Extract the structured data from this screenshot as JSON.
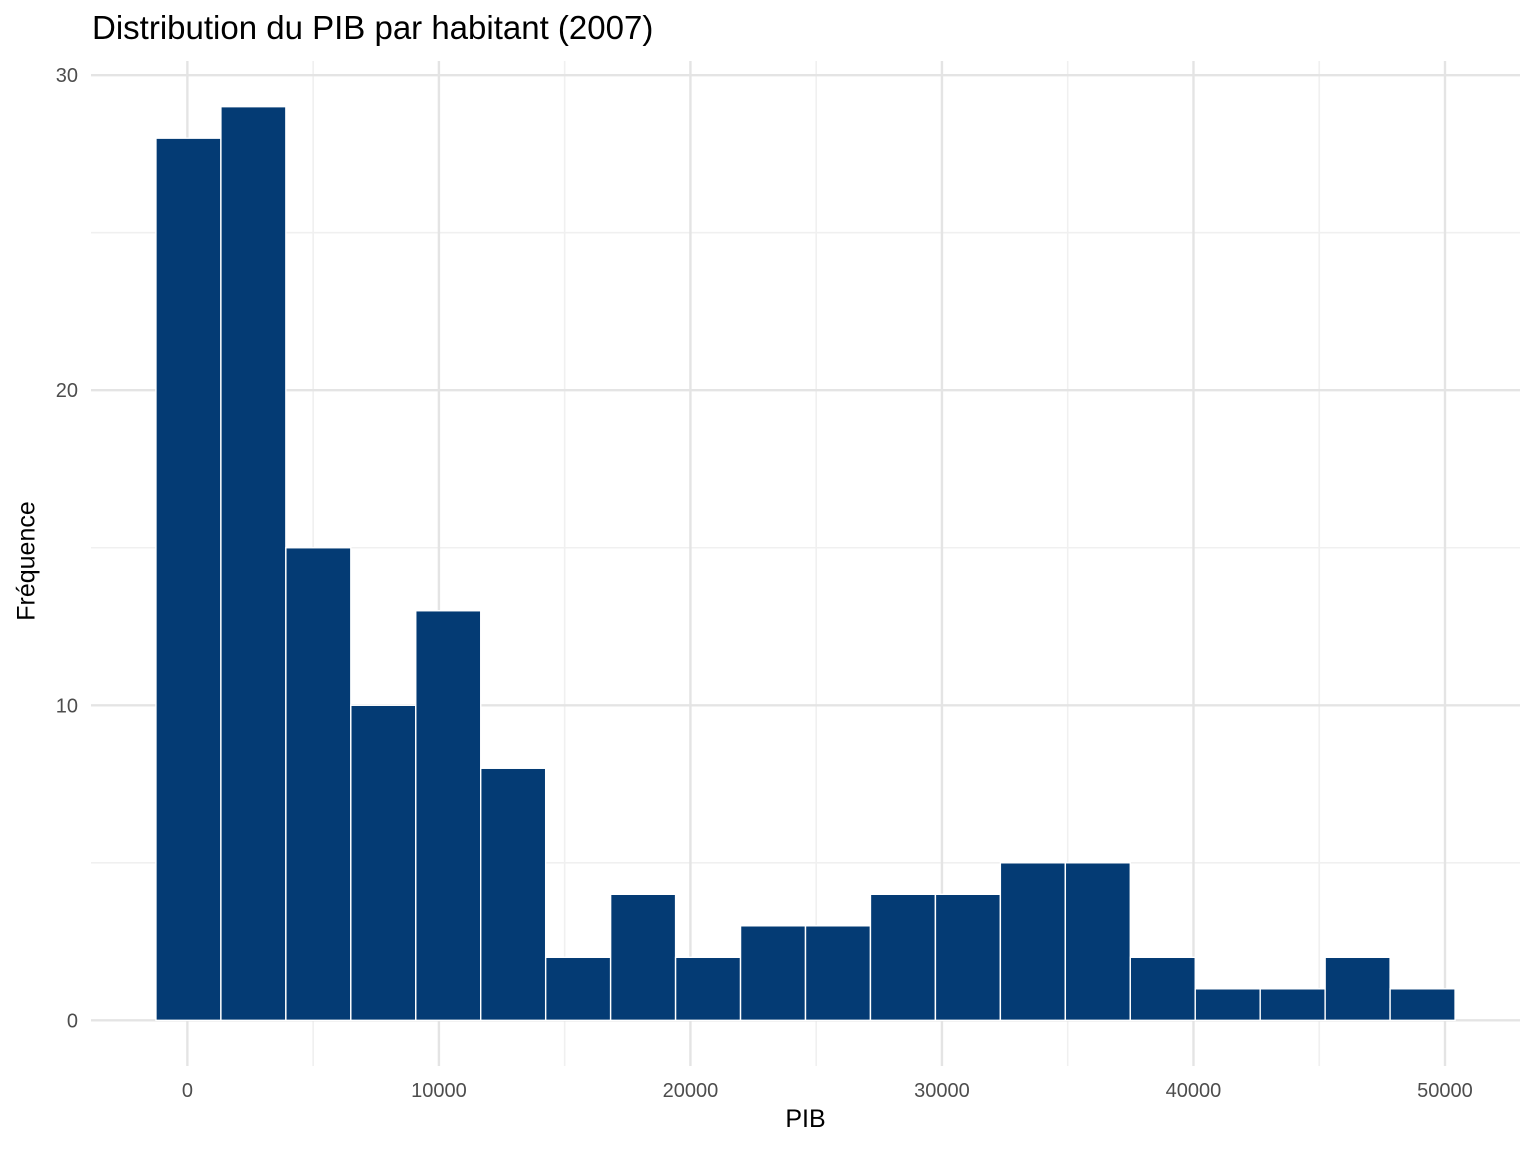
{
  "page": {
    "background": "#FFFFFF"
  },
  "chart_data": {
    "type": "histogram",
    "title": "Distribution du PIB par habitant (2007)",
    "xlabel": "PIB",
    "ylabel": "Fréquence",
    "bins": {
      "start": -1250,
      "width": 2582.5
    },
    "counts": [
      28,
      29,
      15,
      10,
      13,
      8,
      2,
      4,
      2,
      3,
      3,
      4,
      4,
      5,
      5,
      2,
      1,
      1,
      2,
      1
    ],
    "total_observations": 142,
    "x_ticks": {
      "values": [
        0,
        10000,
        20000,
        30000,
        40000,
        50000
      ],
      "labels": [
        "0",
        "10000",
        "20000",
        "30000",
        "40000",
        "50000"
      ],
      "minor": [
        5000,
        15000,
        25000,
        35000,
        45000
      ]
    },
    "y_ticks": {
      "values": [
        0,
        10,
        20,
        30
      ],
      "labels": [
        "0",
        "10",
        "20",
        "30"
      ],
      "minor": [
        5,
        15,
        25
      ]
    },
    "xlim": [
      -3832,
      52982
    ],
    "ylim": [
      -1.45,
      30.45
    ],
    "grid": "major+minor",
    "legend": "none",
    "colors": {
      "bar_fill": "#043B74",
      "bar_stroke": "#FFFFFF",
      "grid_major": "#E4E4E4",
      "grid_minor": "#F0F0F0",
      "tick_label": "#4D4D4D",
      "text": "#000000",
      "background": "#FFFFFF"
    }
  }
}
